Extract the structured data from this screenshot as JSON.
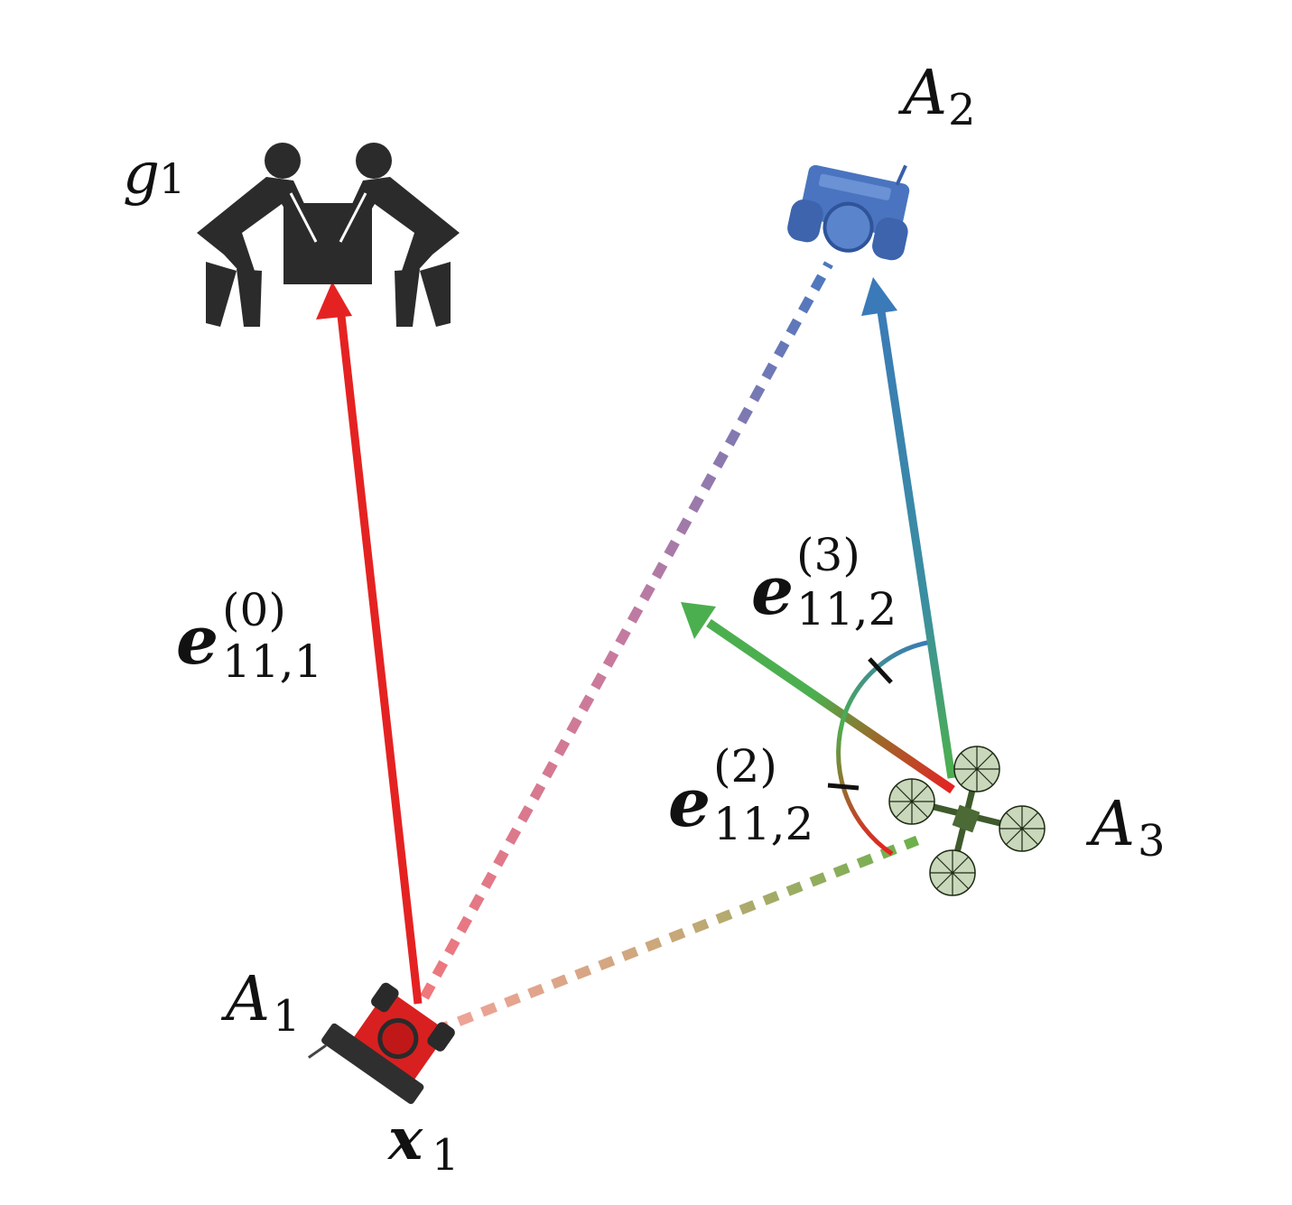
{
  "labels": {
    "g": {
      "base": "g",
      "sub": "1"
    },
    "A1": {
      "base": "A",
      "sub": "1"
    },
    "A2": {
      "base": "A",
      "sub": "2"
    },
    "A3": {
      "base": "A",
      "sub": "3"
    },
    "x": {
      "base": "x",
      "sub": "1"
    },
    "e0": {
      "base": "e",
      "sup": "(0)",
      "sub": "11,1"
    },
    "e2": {
      "base": "e",
      "sup": "(2)",
      "sub": "11,2"
    },
    "e3": {
      "base": "e",
      "sup": "(3)",
      "sub": "11,2"
    }
  },
  "colors": {
    "red": "#e52222",
    "blue": "#3a7ab8",
    "green": "#4caf4f",
    "ink": "#2b2b2b"
  },
  "icons": {
    "goal": "two-people-lifting-box-icon",
    "agent1": "red-ground-robot-icon",
    "agent2": "blue-ground-robot-icon",
    "agent3": "quadcopter-drone-icon"
  }
}
